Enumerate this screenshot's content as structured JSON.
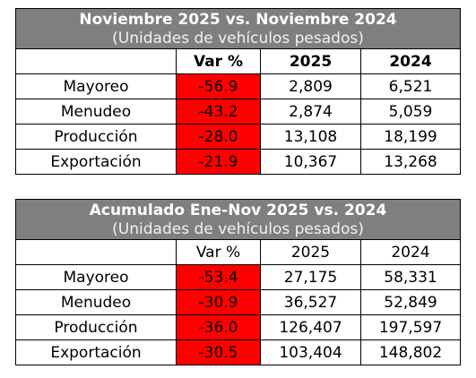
{
  "tables": [
    {
      "title": "Noviembre 2025 vs. Noviembre 2024",
      "subtitle": "(Unidades de vehículos pesados)",
      "headers": [
        "Var %",
        "2025",
        "2024"
      ],
      "headers_bold": true,
      "rows": [
        {
          "label": "Mayoreo",
          "var": "-56.9",
          "y2025": "2,809",
          "y2024": "6,521"
        },
        {
          "label": "Menudeo",
          "var": "-43.2",
          "y2025": "2,874",
          "y2024": "5,059"
        },
        {
          "label": "Producción",
          "var": "-28.0",
          "y2025": "13,108",
          "y2024": "18,199"
        },
        {
          "label": "Exportación",
          "var": "-21.9",
          "y2025": "10,367",
          "y2024": "13,268"
        }
      ]
    },
    {
      "title": "Acumulado Ene-Nov 2025 vs. 2024",
      "subtitle": "(Unidades de vehículos pesados)",
      "headers": [
        "Var %",
        "2025",
        "2024"
      ],
      "headers_bold": false,
      "rows": [
        {
          "label": "Mayoreo",
          "var": "-53.4",
          "y2025": "27,175",
          "y2024": "58,331"
        },
        {
          "label": "Menudeo",
          "var": "-30.9",
          "y2025": "36,527",
          "y2024": "52,849"
        },
        {
          "label": "Producción",
          "var": "-36.0",
          "y2025": "126,407",
          "y2024": "197,597"
        },
        {
          "label": "Exportación",
          "var": "-30.5",
          "y2025": "103,404",
          "y2024": "148,802"
        }
      ]
    }
  ],
  "colors": {
    "header_bg": "#7f7f7f",
    "negative_bg": "#ff0000",
    "header_text": "#ffffff"
  }
}
